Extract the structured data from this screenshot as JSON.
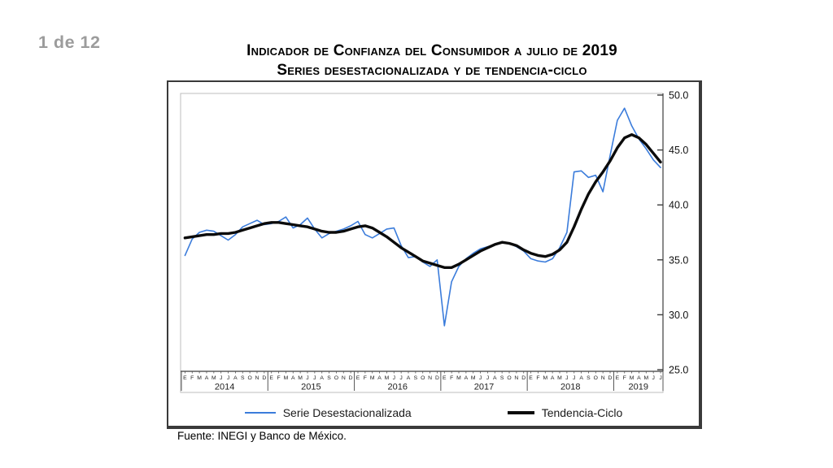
{
  "page": {
    "page_indicator": "1 de 12",
    "source": "Fuente: INEGI y Banco de México."
  },
  "chart_data": {
    "type": "line",
    "title": "Indicador de Confianza del Consumidor a julio de 2019",
    "subtitle": "Series desestacionalizada y de tendencia-ciclo",
    "y_axis_side": "right",
    "grid": false,
    "ylim": [
      25.0,
      50.0
    ],
    "y_ticks": [
      "50.0",
      "45.0",
      "40.0",
      "35.0",
      "30.0",
      "25.0"
    ],
    "legend_position": "bottom",
    "years": [
      {
        "label": "2014",
        "months": [
          "E",
          "F",
          "M",
          "A",
          "M",
          "J",
          "J",
          "A",
          "S",
          "O",
          "N",
          "D"
        ]
      },
      {
        "label": "2015",
        "months": [
          "E",
          "F",
          "M",
          "A",
          "M",
          "J",
          "J",
          "A",
          "S",
          "O",
          "N",
          "D"
        ]
      },
      {
        "label": "2016",
        "months": [
          "E",
          "F",
          "M",
          "A",
          "M",
          "J",
          "J",
          "A",
          "S",
          "O",
          "N",
          "D"
        ]
      },
      {
        "label": "2017",
        "months": [
          "E",
          "F",
          "M",
          "A",
          "M",
          "J",
          "J",
          "A",
          "S",
          "O",
          "N",
          "D"
        ]
      },
      {
        "label": "2018",
        "months": [
          "E",
          "F",
          "M",
          "A",
          "M",
          "J",
          "J",
          "A",
          "S",
          "O",
          "N",
          "D"
        ]
      },
      {
        "label": "2019",
        "months": [
          "E",
          "F",
          "M",
          "A",
          "M",
          "J",
          "J"
        ]
      }
    ],
    "series": [
      {
        "name": "Serie Desestacionalizada",
        "color": "#3b7cdb",
        "width": 1.6,
        "values": [
          35.4,
          36.9,
          37.5,
          37.7,
          37.6,
          37.2,
          36.8,
          37.3,
          38.0,
          38.3,
          38.6,
          38.2,
          38.3,
          38.5,
          38.9,
          37.9,
          38.2,
          38.8,
          37.8,
          37.0,
          37.4,
          37.6,
          37.8,
          38.1,
          38.5,
          37.3,
          37.0,
          37.4,
          37.8,
          37.9,
          36.3,
          35.2,
          35.3,
          34.8,
          34.4,
          35.0,
          29.0,
          33.0,
          34.4,
          35.1,
          35.6,
          36.0,
          36.2,
          36.4,
          36.6,
          36.5,
          36.2,
          35.8,
          35.1,
          34.9,
          34.8,
          35.1,
          36.1,
          37.5,
          43.0,
          43.1,
          42.5,
          42.7,
          41.2,
          44.5,
          47.7,
          48.8,
          47.2,
          46.0,
          45.1,
          44.1,
          43.4
        ]
      },
      {
        "name": "Tendencia-Ciclo",
        "color": "#0b0b0b",
        "width": 3.4,
        "values": [
          37.0,
          37.1,
          37.2,
          37.3,
          37.3,
          37.4,
          37.4,
          37.5,
          37.7,
          37.9,
          38.1,
          38.3,
          38.4,
          38.4,
          38.3,
          38.2,
          38.1,
          38.0,
          37.8,
          37.6,
          37.5,
          37.5,
          37.6,
          37.8,
          38.0,
          38.1,
          37.9,
          37.5,
          37.1,
          36.6,
          36.1,
          35.7,
          35.3,
          34.9,
          34.7,
          34.5,
          34.3,
          34.3,
          34.6,
          35.0,
          35.4,
          35.8,
          36.1,
          36.4,
          36.6,
          36.5,
          36.3,
          35.9,
          35.6,
          35.4,
          35.3,
          35.5,
          35.9,
          36.6,
          38.0,
          39.6,
          41.0,
          42.1,
          43.0,
          44.0,
          45.2,
          46.1,
          46.4,
          46.1,
          45.5,
          44.7,
          43.9
        ]
      }
    ]
  }
}
